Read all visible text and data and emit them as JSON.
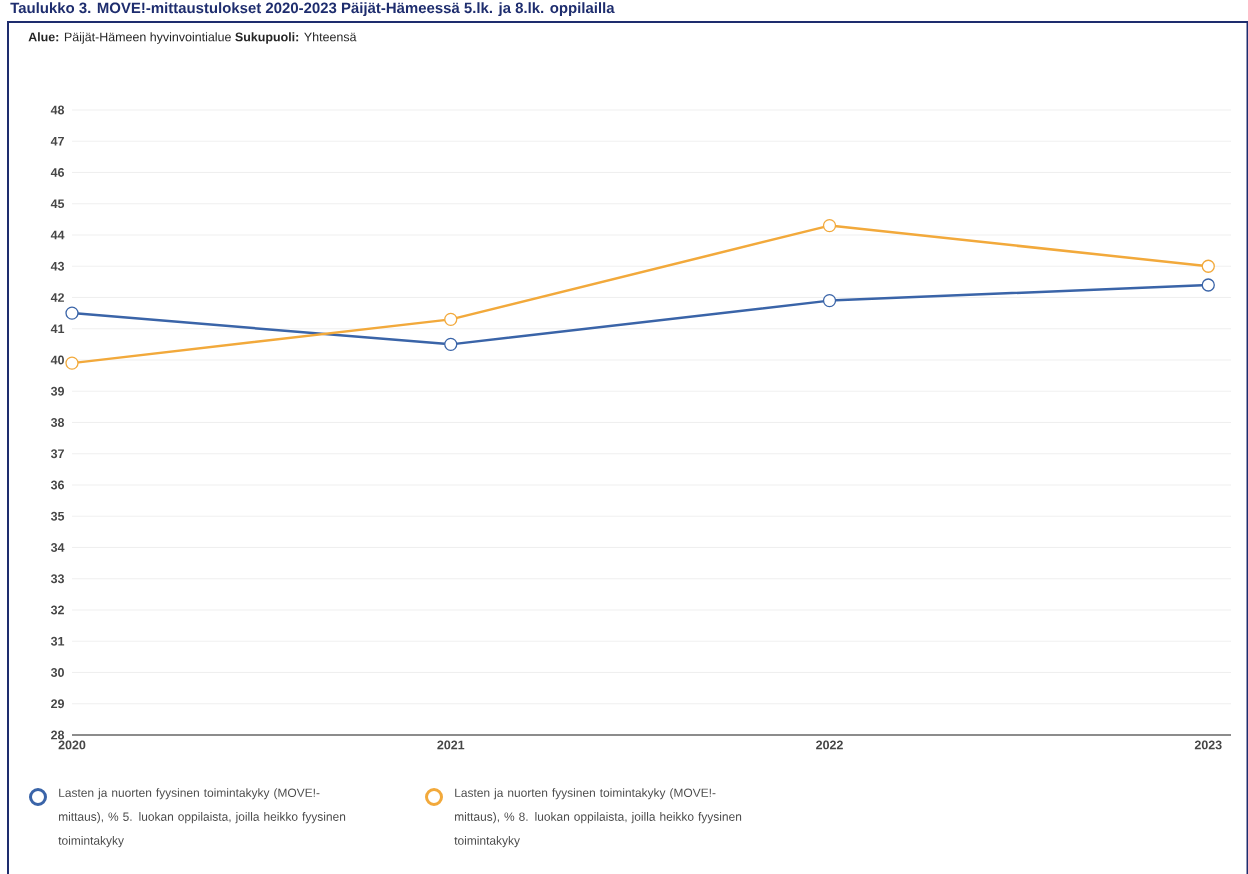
{
  "chart_data": {
    "type": "line",
    "title": "Taulukko 3. MOVE!-mittaustulokset 2020-2023 Päijät-Hämeessä 5.lk. ja 8.lk. oppilailla",
    "subtitle": "**Alue:** Päijät-Hämeen hyvinvointialue **Sukupuoli:** Yhteensä",
    "categories": [
      "2020",
      "2021",
      "2022",
      "2023"
    ],
    "series": [
      {
        "name": "Lasten ja nuorten fyysinen toimintakyky (MOVE!-mittaus), % 5. luokan oppilaista, joilla heikko fyysinen toimintakyky",
        "color": "#3a64a8",
        "values": [
          41.5,
          40.5,
          41.9,
          42.4
        ]
      },
      {
        "name": "Lasten ja nuorten fyysinen toimintakyky (MOVE!-mittaus), % 8. luokan oppilaista, joilla heikko fyysinen toimintakyky",
        "color": "#f2a93b",
        "values": [
          39.9,
          41.3,
          44.3,
          43.0
        ]
      }
    ],
    "ylim": [
      28,
      48
    ],
    "yticks": [
      28,
      29,
      30,
      31,
      32,
      33,
      34,
      35,
      36,
      37,
      38,
      39,
      40,
      41,
      42,
      43,
      44,
      45,
      46,
      47,
      48
    ],
    "grid": "y",
    "legend": "bottom",
    "marker": "circle",
    "line_style": "solid"
  }
}
